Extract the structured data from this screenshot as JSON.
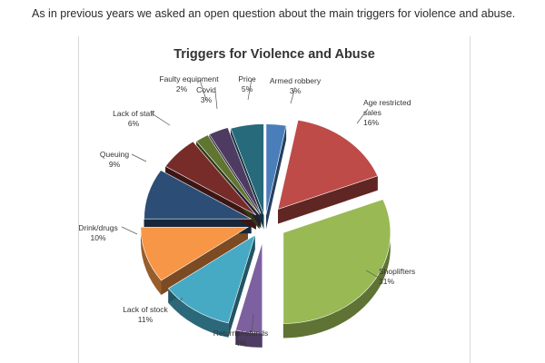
{
  "intro_text": "As in previous years we asked an open question about the main triggers for violence and abuse.",
  "chart_data": {
    "type": "pie",
    "title": "Triggers for Violence and Abuse",
    "slices": [
      {
        "label": "Armed robbery",
        "value": 3,
        "value_label": "3%",
        "color": "#4a7ebb"
      },
      {
        "label": "Age restricted sales",
        "value": 16,
        "value_label": "16%",
        "color": "#be4b48"
      },
      {
        "label": "Shoplifters",
        "value": 31,
        "value_label": "31%",
        "color": "#98b954"
      },
      {
        "label": "Returns/refunds",
        "value": 4,
        "value_label": "4%",
        "color": "#7d60a0"
      },
      {
        "label": "Lack of stock",
        "value": 11,
        "value_label": "11%",
        "color": "#46aac5"
      },
      {
        "label": "Drink/drugs",
        "value": 10,
        "value_label": "10%",
        "color": "#f79646"
      },
      {
        "label": "Queuing",
        "value": 9,
        "value_label": "9%",
        "color": "#2c4d75"
      },
      {
        "label": "Lack of staff",
        "value": 6,
        "value_label": "6%",
        "color": "#772c2a"
      },
      {
        "label": "Faulty equipment",
        "value": 2,
        "value_label": "2%",
        "color": "#5f7530"
      },
      {
        "label": "Covid",
        "value": 3,
        "value_label": "3%",
        "color": "#4d3b62"
      },
      {
        "label": "Price",
        "value": 5,
        "value_label": "5%",
        "color": "#276a7c"
      }
    ]
  }
}
